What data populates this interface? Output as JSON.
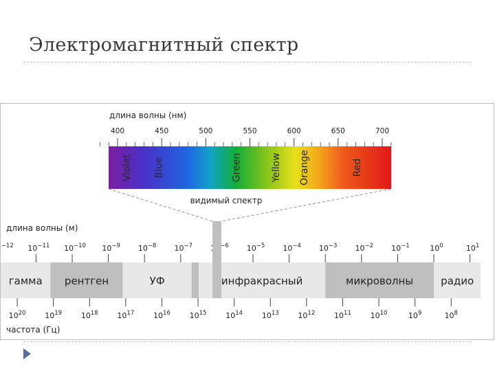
{
  "slide": {
    "title": "Электромагнитный спектр"
  },
  "visible": {
    "axis_title": "длина волны (нм)",
    "ticks": [
      "400",
      "450",
      "500",
      "550",
      "600",
      "650",
      "700"
    ],
    "tick_values": [
      400,
      450,
      500,
      550,
      600,
      650,
      700
    ],
    "colors": [
      {
        "label": "Violet",
        "at": 400
      },
      {
        "label": "Blue",
        "at": 447
      },
      {
        "label": "Green",
        "at": 535
      },
      {
        "label": "Yellow",
        "at": 580
      },
      {
        "label": "Orange",
        "at": 612
      },
      {
        "label": "Red",
        "at": 672
      }
    ],
    "caption": "видимый спектр",
    "range": [
      380,
      710
    ]
  },
  "wavelength": {
    "label": "длина волны (м)",
    "exponents": [
      "−12",
      "−11",
      "−10",
      "−9",
      "−8",
      "−7",
      "−6",
      "−5",
      "−4",
      "−3",
      "−2",
      "−1",
      "0",
      "1"
    ],
    "exponent_values": [
      -12,
      -11,
      -10,
      -9,
      -8,
      -7,
      -6,
      -5,
      -4,
      -3,
      -2,
      -1,
      0,
      1
    ]
  },
  "bands": [
    {
      "label": "гамма",
      "from": -12.6,
      "to": -10.6,
      "color": "#e8e8e8"
    },
    {
      "label": "рентген",
      "from": -10.6,
      "to": -8.6,
      "color": "#bfbfbf"
    },
    {
      "label": "УФ",
      "from": -8.6,
      "to": -6.7,
      "color": "#e8e8e8"
    },
    {
      "label": "",
      "from": -6.7,
      "to": -6.5,
      "color": "#bfbfbf"
    },
    {
      "label": "инфракрасный",
      "from": -6.5,
      "to": -3.0,
      "color": "#e8e8e8"
    },
    {
      "label": "микроволны",
      "from": -3.0,
      "to": 0.0,
      "color": "#bfbfbf"
    },
    {
      "label": "радио",
      "from": 0.0,
      "to": 1.3,
      "color": "#e8e8e8"
    }
  ],
  "frequency": {
    "label": "частота (Гц)",
    "exponents": [
      "20",
      "19",
      "18",
      "17",
      "16",
      "15",
      "14",
      "13",
      "12",
      "11",
      "10",
      "9",
      "8"
    ],
    "exponent_values": [
      20,
      19,
      18,
      17,
      16,
      15,
      14,
      13,
      12,
      11,
      10,
      9,
      8
    ]
  },
  "colors": {
    "band_light": "#e8e8e8",
    "band_dark": "#bfbfbf",
    "visible_marker": "#bfbfbf",
    "text": "#222222",
    "title": "#3a3a3a",
    "bullet": "#5b6f9a"
  }
}
